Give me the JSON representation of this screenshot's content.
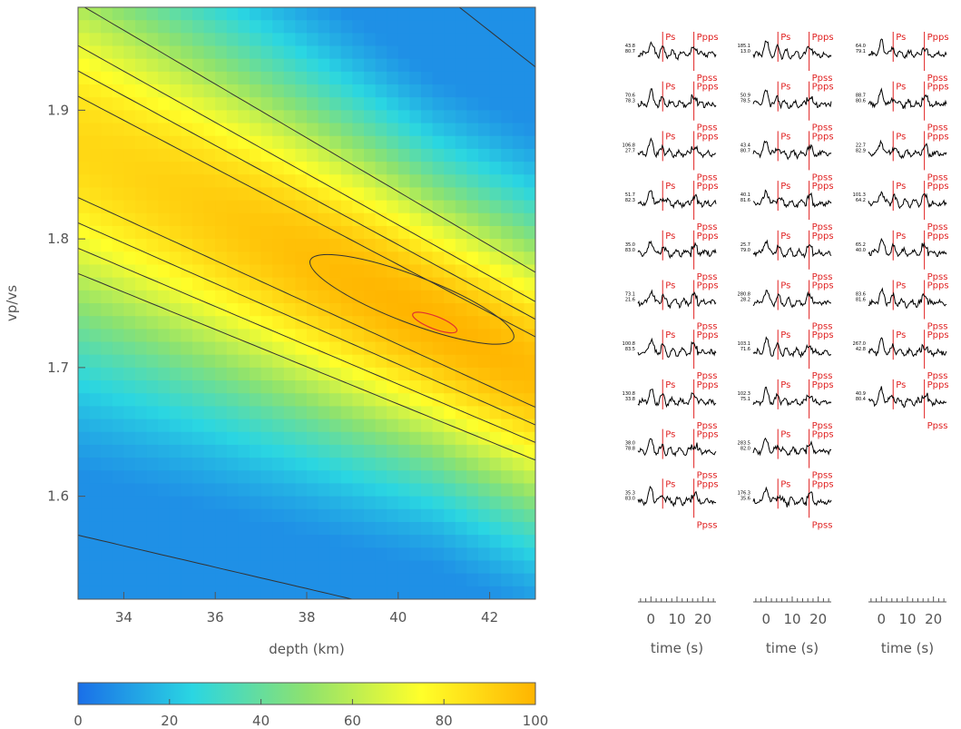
{
  "chart_data": [
    {
      "type": "heatmap",
      "xlabel": "depth (km)",
      "ylabel": "vp/vs",
      "xlim": [
        33,
        43
      ],
      "ylim": [
        1.52,
        1.98
      ],
      "x_ticks": [
        34,
        36,
        38,
        40,
        42
      ],
      "y_ticks": [
        1.6,
        1.7,
        1.8,
        1.9
      ],
      "colorbar": {
        "min": 0,
        "max": 100,
        "ticks": [
          0,
          20,
          40,
          60,
          80,
          100
        ],
        "colormap": [
          "#1a6fe8",
          "#2ad6e2",
          "#8ee26e",
          "#ffff2a",
          "#ffb400"
        ]
      },
      "peak": {
        "depth": 40.8,
        "vpvs": 1.735
      },
      "contour_levels": [
        90,
        80,
        70,
        60,
        50,
        40,
        30,
        20
      ],
      "contour_color": "#333333",
      "max_contour_color": "#e03030"
    },
    {
      "type": "line",
      "description_free": true,
      "columns": [
        {
          "x_ticks": [
            0,
            10,
            20
          ],
          "xlabel": "time (s)",
          "rows": [
            [
              "43.8",
              "80.7"
            ],
            [
              "70.6",
              "78.3"
            ],
            [
              "106.8",
              "27.7"
            ],
            [
              "51.7",
              "82.3"
            ],
            [
              "35.0",
              "83.0"
            ],
            [
              "73.1",
              "21.6"
            ],
            [
              "100.8",
              "83.5"
            ],
            [
              "130.8",
              "33.8"
            ],
            [
              "38.0",
              "78.8"
            ],
            [
              "35.3",
              "83.0"
            ]
          ]
        },
        {
          "x_ticks": [
            0,
            10,
            20
          ],
          "xlabel": "time (s)",
          "rows": [
            [
              "185.1",
              "13.0"
            ],
            [
              "50.9",
              "78.5"
            ],
            [
              "43.4",
              "80.7"
            ],
            [
              "40.1",
              "81.6"
            ],
            [
              "25.7",
              "79.0"
            ],
            [
              "280.8",
              "28.2"
            ],
            [
              "103.1",
              "71.6"
            ],
            [
              "102.3",
              "75.1"
            ],
            [
              "283.5",
              "82.0"
            ],
            [
              "176.3",
              "35.6"
            ]
          ]
        },
        {
          "x_ticks": [
            0,
            10,
            20
          ],
          "xlabel": "time (s)",
          "rows": [
            [
              "64.0",
              "79.1"
            ],
            [
              "88.7",
              "80.6"
            ],
            [
              "22.7",
              "82.9"
            ],
            [
              "101.3",
              "64.2"
            ],
            [
              "65.2",
              "40.0"
            ],
            [
              "83.6",
              "81.6"
            ],
            [
              "267.0",
              "42.8"
            ],
            [
              "40.9",
              "80.4"
            ]
          ]
        }
      ],
      "phase_labels": [
        "Ps",
        "Ppps",
        "Ppss"
      ],
      "phase_color": "#e02020"
    }
  ]
}
